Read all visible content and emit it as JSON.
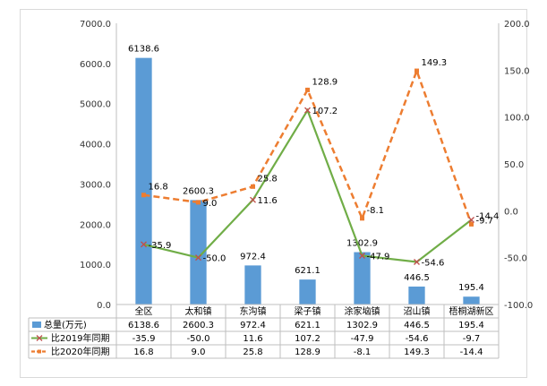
{
  "chart_data": {
    "type": "bar",
    "categories": [
      "全区",
      "太和镇",
      "东沟镇",
      "梁子镇",
      "涂家垴镇",
      "沼山镇",
      "梧桐湖新区"
    ],
    "series": [
      {
        "name": "总量(万元)",
        "kind": "bar",
        "axis": "left",
        "color": "#5b9bd5",
        "values": [
          6138.6,
          2600.3,
          972.4,
          621.1,
          1302.9,
          446.5,
          195.4
        ]
      },
      {
        "name": "比2019年同期",
        "kind": "line",
        "axis": "right",
        "color": "#70ad47",
        "values": [
          -35.9,
          -50.0,
          11.6,
          107.2,
          -47.9,
          -54.6,
          -9.7
        ]
      },
      {
        "name": "比2020年同期",
        "kind": "line",
        "axis": "right",
        "color": "#ed7d31",
        "dashed": true,
        "values": [
          16.8,
          9.0,
          25.8,
          128.9,
          -8.1,
          149.3,
          -14.4
        ]
      }
    ],
    "data_labels": {
      "bar": [
        "6138.6",
        "2600.3",
        "972.4",
        "621.1",
        "1302.9",
        "446.5",
        "195.4"
      ],
      "line2019": [
        "-35.9",
        "-50.0",
        "11.6",
        "107.2",
        "-47.9",
        "-54.6",
        "-9.7"
      ],
      "line2020": [
        "16.8",
        "9.0",
        "25.8",
        "128.9",
        "-8.1",
        "149.3",
        "-14.4"
      ]
    },
    "table": {
      "rows": [
        [
          "6138.6",
          "2600.3",
          "972.4",
          "621.1",
          "1302.9",
          "446.5",
          "195.4"
        ],
        [
          "-35.9",
          "-50.0",
          "11.6",
          "107.2",
          "-47.9",
          "-54.6",
          "-9.7"
        ],
        [
          "16.8",
          "9.0",
          "25.8",
          "128.9",
          "-8.1",
          "149.3",
          "-14.4"
        ]
      ]
    },
    "y_left": {
      "min": 0,
      "max": 7000,
      "step": 1000,
      "ticks": [
        "0.0",
        "1000.0",
        "2000.0",
        "3000.0",
        "4000.0",
        "5000.0",
        "6000.0",
        "7000.0"
      ]
    },
    "y_right": {
      "min": -100,
      "max": 200,
      "step": 50,
      "ticks": [
        "-100.0",
        "-50.0",
        "0.0",
        "50.0",
        "100.0",
        "150.0",
        "200.0"
      ]
    },
    "grid": false,
    "legend": "data-table-below"
  }
}
